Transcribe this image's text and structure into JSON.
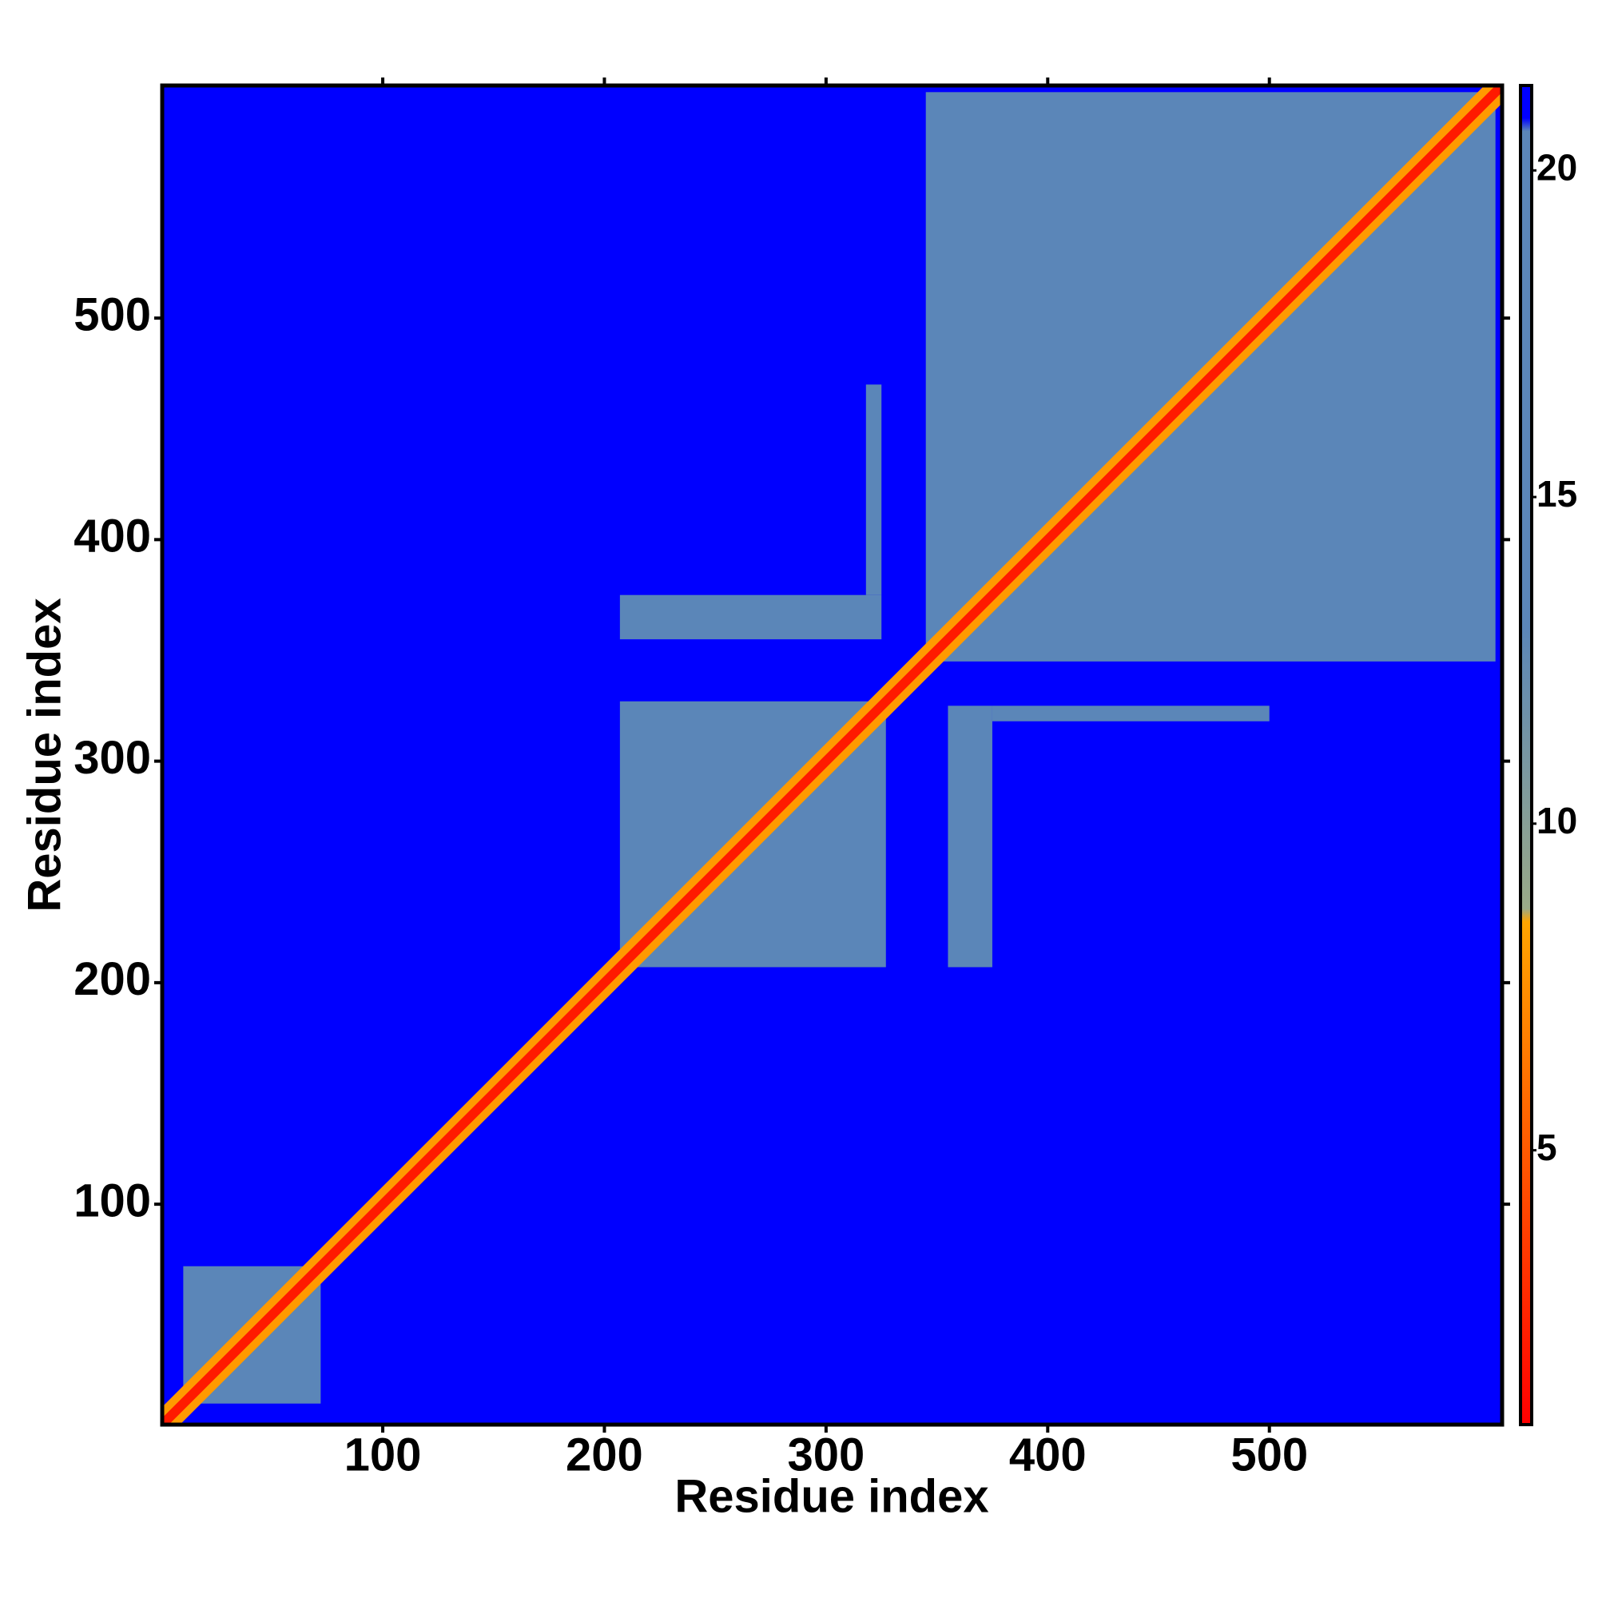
{
  "chart_data": {
    "type": "heatmap",
    "xlabel": "Residue index",
    "ylabel": "Residue index",
    "xlim": [
      0.5,
      605
    ],
    "ylim": [
      0.5,
      605
    ],
    "xticks": [
      100,
      200,
      300,
      400,
      500
    ],
    "yticks": [
      100,
      200,
      300,
      400,
      500
    ],
    "background_value": 21,
    "blocks": [
      {
        "x": [
          10,
          72
        ],
        "y": [
          10,
          72
        ],
        "value": 17
      },
      {
        "x": [
          207,
          327
        ],
        "y": [
          207,
          327
        ],
        "value": 17
      },
      {
        "x": [
          345,
          602
        ],
        "y": [
          345,
          602
        ],
        "value": 17
      },
      {
        "x": [
          207,
          325
        ],
        "y": [
          355,
          375
        ],
        "value": 17
      },
      {
        "x": [
          355,
          375
        ],
        "y": [
          207,
          325
        ],
        "value": 17
      },
      {
        "x": [
          375,
          500
        ],
        "y": [
          318,
          325
        ],
        "value": 17
      },
      {
        "x": [
          318,
          325
        ],
        "y": [
          375,
          470
        ],
        "value": 17
      }
    ],
    "diagonal": [
      {
        "halfwidth": 4,
        "value": 8
      },
      {
        "halfwidth": 1.5,
        "value": 2
      }
    ],
    "clim": [
      0.8,
      21.3
    ],
    "cticks": [
      5,
      10,
      15,
      20
    ],
    "colormap": [
      {
        "value": 0.8,
        "color": "#ff0000"
      },
      {
        "value": 8.5,
        "color": "#ffa500"
      },
      {
        "value": 8.7,
        "color": "#9aaa88"
      },
      {
        "value": 13,
        "color": "#5b86b8"
      },
      {
        "value": 20.6,
        "color": "#5b86b8"
      },
      {
        "value": 20.8,
        "color": "#0000ff"
      },
      {
        "value": 21.3,
        "color": "#0000ff"
      }
    ]
  }
}
